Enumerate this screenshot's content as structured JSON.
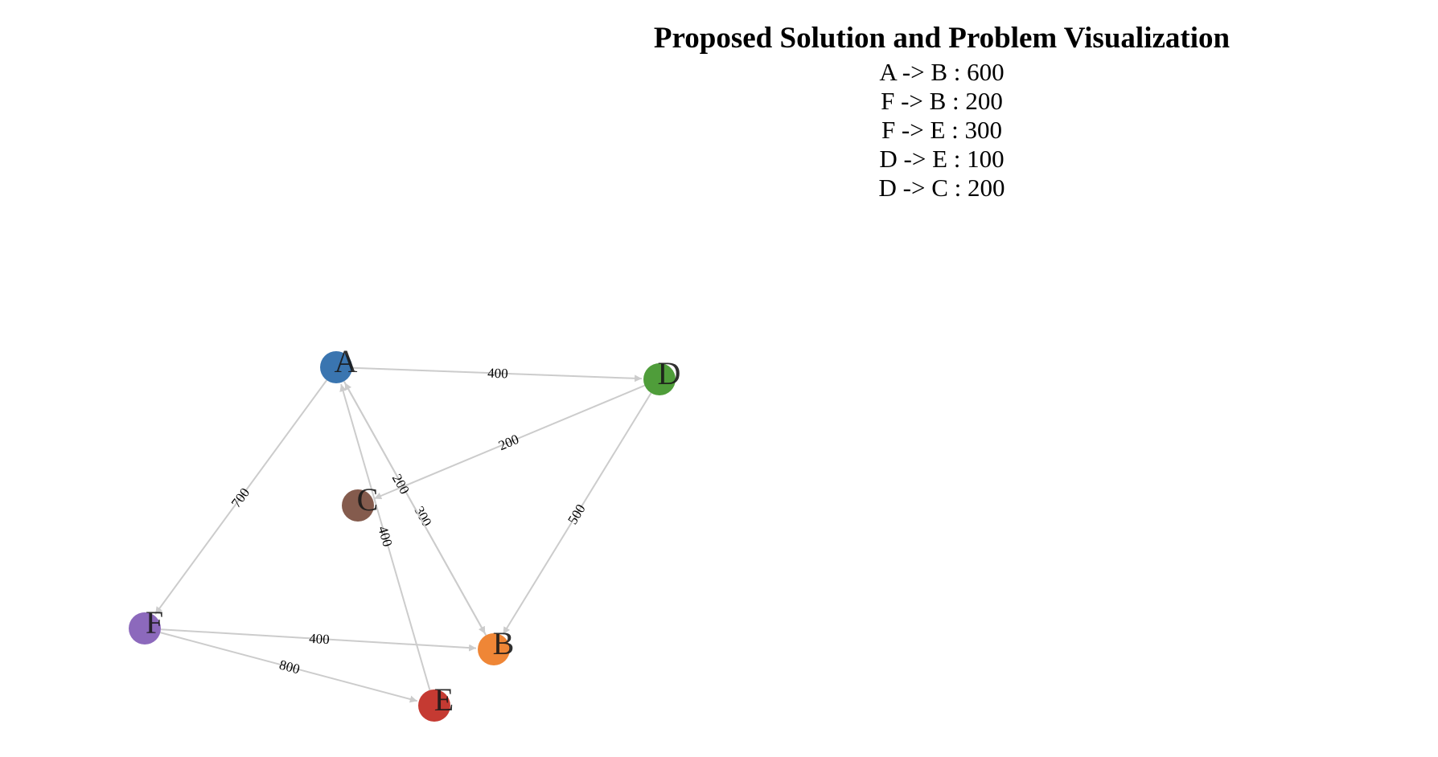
{
  "header": {
    "title": "Proposed Solution and Problem Visualization",
    "solution": [
      "A -> B : 600",
      "F -> B : 200",
      "F -> E : 300",
      "D -> E : 100",
      "D -> C : 200"
    ]
  },
  "graph": {
    "nodes": [
      {
        "id": "A",
        "label": "A",
        "color": "#3a75b0"
      },
      {
        "id": "B",
        "label": "B",
        "color": "#ef8636"
      },
      {
        "id": "C",
        "label": "C",
        "color": "#845b4d"
      },
      {
        "id": "D",
        "label": "D",
        "color": "#4f9d3a"
      },
      {
        "id": "E",
        "label": "E",
        "color": "#c53a32"
      },
      {
        "id": "F",
        "label": "F",
        "color": "#8c69bc"
      }
    ],
    "edges": [
      {
        "from": "A",
        "to": "D",
        "label": "400"
      },
      {
        "from": "A",
        "to": "F",
        "label": "700"
      },
      {
        "from": "A",
        "to": "B",
        "label": "300"
      },
      {
        "from": "B",
        "to": "A",
        "label": "200"
      },
      {
        "from": "D",
        "to": "C",
        "label": "200"
      },
      {
        "from": "D",
        "to": "B",
        "label": "500"
      },
      {
        "from": "E",
        "to": "A",
        "label": "400"
      },
      {
        "from": "F",
        "to": "B",
        "label": "400"
      },
      {
        "from": "F",
        "to": "E",
        "label": "800"
      }
    ]
  }
}
